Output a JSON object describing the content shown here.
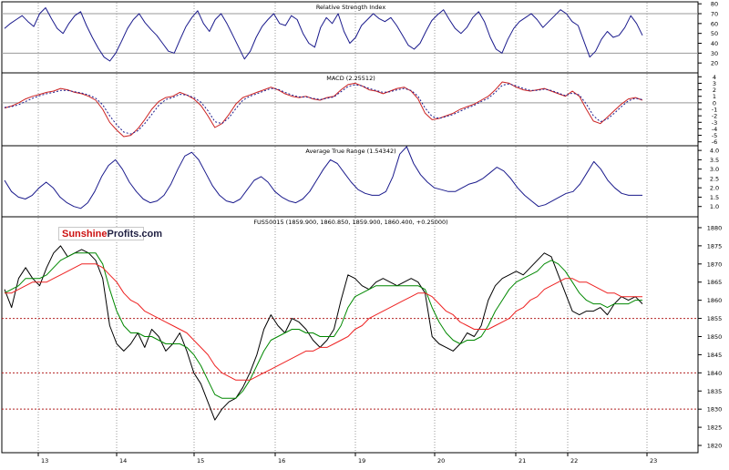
{
  "logo": {
    "part1": "Sunshine",
    "part2": "Profits.com"
  },
  "colors": {
    "price": "#000000",
    "ma_short": "#008800",
    "ma_long": "#ee2222",
    "indicator": "#1a1a8c",
    "macd": "#cc2222",
    "macd_signal": "#1a1a8c",
    "support": "#b22222",
    "grid": "#999999"
  },
  "x_axis": {
    "labels": [
      "13",
      "14",
      "15",
      "16",
      "19",
      "20",
      "21",
      "22",
      "23"
    ]
  },
  "chart_data": [
    {
      "type": "line",
      "title": "Relative Strength Index",
      "ylim": [
        10,
        82
      ],
      "yticks": [
        20,
        30,
        40,
        50,
        60,
        70,
        80
      ],
      "reference_lines": [
        30,
        70
      ],
      "series": [
        {
          "values": [
            55,
            60,
            64,
            68,
            62,
            57,
            70,
            76,
            65,
            55,
            50,
            60,
            68,
            72,
            58,
            46,
            35,
            26,
            22,
            30,
            42,
            55,
            64,
            70,
            61,
            54,
            48,
            40,
            32,
            30,
            44,
            57,
            66,
            73,
            60,
            52,
            64,
            70,
            60,
            48,
            36,
            24,
            32,
            46,
            57,
            64,
            70,
            60,
            58,
            68,
            64,
            50,
            40,
            36,
            56,
            66,
            60,
            70,
            52,
            40,
            46,
            58,
            64,
            70,
            65,
            62,
            66,
            58,
            48,
            38,
            34,
            40,
            52,
            63,
            69,
            74,
            64,
            55,
            50,
            56,
            66,
            72,
            62,
            46,
            34,
            30,
            44,
            55,
            62,
            66,
            70,
            64,
            56,
            62,
            68,
            74,
            70,
            62,
            58,
            42,
            26,
            32,
            44,
            52,
            46,
            48,
            56,
            68,
            60,
            48
          ]
        }
      ]
    },
    {
      "type": "line",
      "title": "MACD (2.25512)",
      "ylim": [
        -6.6,
        4.6
      ],
      "yticks": [
        4,
        3,
        2,
        1,
        0,
        -1,
        -2,
        -3,
        -4,
        -5,
        -6
      ],
      "reference_lines": [
        0
      ],
      "series": [
        {
          "values": [
            -0.8,
            -0.5,
            0,
            0.6,
            1.0,
            1.3,
            1.6,
            1.8,
            2.2,
            2.0,
            1.6,
            1.4,
            1.0,
            0.4,
            -1.0,
            -3.0,
            -4.2,
            -5.2,
            -5.0,
            -4.0,
            -2.6,
            -1.0,
            0.2,
            0.8,
            1.0,
            1.6,
            1.2,
            0.6,
            -0.4,
            -2.0,
            -3.8,
            -3.2,
            -1.8,
            -0.2,
            0.8,
            1.2,
            1.6,
            2.0,
            2.4,
            2.0,
            1.4,
            1.0,
            0.8,
            1.0,
            0.6,
            0.4,
            0.8,
            1.0,
            2.0,
            2.8,
            3.0,
            2.6,
            2.0,
            1.8,
            1.4,
            1.8,
            2.2,
            2.4,
            1.8,
            0.6,
            -1.6,
            -2.6,
            -2.4,
            -2.0,
            -1.6,
            -1.0,
            -0.6,
            -0.2,
            0.4,
            1.0,
            2.0,
            3.2,
            3.0,
            2.4,
            2.0,
            1.8,
            2.0,
            2.2,
            1.8,
            1.4,
            1.0,
            1.8,
            1.0,
            -1.0,
            -2.8,
            -3.2,
            -2.2,
            -1.2,
            -0.2,
            0.6,
            0.8,
            0.4
          ]
        },
        {
          "values": [
            -0.7,
            -0.6,
            -0.3,
            0.2,
            0.7,
            1.1,
            1.4,
            1.6,
            1.9,
            1.9,
            1.7,
            1.5,
            1.2,
            0.7,
            -0.3,
            -2.0,
            -3.4,
            -4.5,
            -4.8,
            -4.3,
            -3.2,
            -1.8,
            -0.4,
            0.5,
            0.8,
            1.3,
            1.2,
            0.8,
            0.1,
            -1.2,
            -2.9,
            -3.2,
            -2.3,
            -0.9,
            0.4,
            1.0,
            1.4,
            1.8,
            2.2,
            2.1,
            1.6,
            1.2,
            0.9,
            0.9,
            0.7,
            0.5,
            0.7,
            0.9,
            1.7,
            2.5,
            2.8,
            2.6,
            2.2,
            1.9,
            1.6,
            1.7,
            2.0,
            2.2,
            1.9,
            1.0,
            -0.8,
            -2.1,
            -2.4,
            -2.1,
            -1.8,
            -1.3,
            -0.8,
            -0.4,
            0.2,
            0.7,
            1.6,
            2.7,
            2.9,
            2.6,
            2.2,
            1.9,
            1.9,
            2.1,
            1.9,
            1.5,
            1.1,
            1.5,
            1.2,
            -0.2,
            -2.0,
            -2.9,
            -2.5,
            -1.6,
            -0.6,
            0.3,
            0.7,
            0.5
          ]
        }
      ]
    },
    {
      "type": "line",
      "title": "Average True Range (1.54342)",
      "ylim": [
        0.45,
        4.25
      ],
      "yticks": [
        4.0,
        3.5,
        3.0,
        2.5,
        2.0,
        1.5,
        1.0
      ],
      "series": [
        {
          "values": [
            2.4,
            1.8,
            1.5,
            1.4,
            1.6,
            2.0,
            2.3,
            2.0,
            1.5,
            1.2,
            1.0,
            0.9,
            1.2,
            1.8,
            2.6,
            3.2,
            3.5,
            3.0,
            2.3,
            1.8,
            1.4,
            1.2,
            1.3,
            1.6,
            2.2,
            3.0,
            3.7,
            3.9,
            3.5,
            2.8,
            2.1,
            1.6,
            1.3,
            1.2,
            1.4,
            1.9,
            2.4,
            2.6,
            2.3,
            1.8,
            1.5,
            1.3,
            1.2,
            1.4,
            1.8,
            2.4,
            3.0,
            3.5,
            3.3,
            2.8,
            2.3,
            1.9,
            1.7,
            1.6,
            1.6,
            1.8,
            2.6,
            3.8,
            4.2,
            3.3,
            2.7,
            2.3,
            2.0,
            1.9,
            1.8,
            1.8,
            2.0,
            2.2,
            2.3,
            2.5,
            2.8,
            3.1,
            2.9,
            2.5,
            2.0,
            1.6,
            1.3,
            1.0,
            1.1,
            1.3,
            1.5,
            1.7,
            1.8,
            2.2,
            2.8,
            3.4,
            3.0,
            2.4,
            2.0,
            1.7,
            1.6,
            1.6,
            1.6
          ]
        }
      ]
    },
    {
      "type": "line",
      "title": "FUS50015 (1859.900, 1860.850, 1859.900, 1860.400, +0.25000)",
      "ylim": [
        1818,
        1883
      ],
      "yticks": [
        1880,
        1875,
        1870,
        1865,
        1860,
        1855,
        1850,
        1845,
        1840,
        1835,
        1830,
        1825,
        1820
      ],
      "support_lines": [
        1855,
        1840,
        1830
      ],
      "series": [
        {
          "values": [
            1863,
            1858,
            1866,
            1869,
            1866,
            1864,
            1869,
            1873,
            1875,
            1872,
            1873,
            1874,
            1873,
            1871,
            1866,
            1853,
            1848,
            1846,
            1848,
            1851,
            1847,
            1852,
            1850,
            1846,
            1848,
            1851,
            1846,
            1840,
            1837,
            1832,
            1827,
            1830,
            1832,
            1833,
            1836,
            1840,
            1845,
            1852,
            1856,
            1853,
            1851,
            1855,
            1854,
            1852,
            1849,
            1847,
            1849,
            1852,
            1860,
            1867,
            1866,
            1864,
            1863,
            1865,
            1866,
            1865,
            1864,
            1865,
            1866,
            1865,
            1862,
            1850,
            1848,
            1847,
            1846,
            1848,
            1851,
            1850,
            1853,
            1860,
            1864,
            1866,
            1867,
            1868,
            1867,
            1869,
            1871,
            1873,
            1872,
            1867,
            1862,
            1857,
            1856,
            1857,
            1857,
            1858,
            1856,
            1859,
            1861,
            1860,
            1861,
            1859
          ]
        },
        {
          "values": [
            1862,
            1863,
            1864,
            1866,
            1866,
            1866,
            1867,
            1869,
            1871,
            1872,
            1873,
            1873,
            1873,
            1873,
            1870,
            1863,
            1857,
            1853,
            1851,
            1851,
            1850,
            1850,
            1849,
            1848,
            1848,
            1848,
            1847,
            1845,
            1842,
            1838,
            1834,
            1833,
            1833,
            1833,
            1835,
            1838,
            1842,
            1846,
            1849,
            1850,
            1851,
            1852,
            1852,
            1851,
            1851,
            1850,
            1850,
            1850,
            1853,
            1858,
            1861,
            1862,
            1863,
            1864,
            1864,
            1864,
            1864,
            1864,
            1864,
            1864,
            1863,
            1858,
            1854,
            1851,
            1849,
            1848,
            1849,
            1849,
            1850,
            1853,
            1857,
            1860,
            1863,
            1865,
            1866,
            1867,
            1868,
            1870,
            1871,
            1870,
            1868,
            1865,
            1862,
            1860,
            1859,
            1859,
            1858,
            1859,
            1859,
            1859,
            1860,
            1860
          ]
        },
        {
          "values": [
            1862,
            1862,
            1863,
            1864,
            1865,
            1865,
            1865,
            1866,
            1867,
            1868,
            1869,
            1870,
            1870,
            1870,
            1869,
            1867,
            1865,
            1862,
            1860,
            1859,
            1857,
            1856,
            1855,
            1854,
            1853,
            1852,
            1851,
            1849,
            1847,
            1845,
            1842,
            1840,
            1839,
            1838,
            1838,
            1838,
            1839,
            1840,
            1841,
            1842,
            1843,
            1844,
            1845,
            1846,
            1846,
            1847,
            1847,
            1848,
            1849,
            1850,
            1852,
            1853,
            1855,
            1856,
            1857,
            1858,
            1859,
            1860,
            1861,
            1862,
            1862,
            1861,
            1859,
            1857,
            1856,
            1854,
            1853,
            1852,
            1852,
            1852,
            1853,
            1854,
            1855,
            1857,
            1858,
            1860,
            1861,
            1863,
            1864,
            1865,
            1866,
            1866,
            1865,
            1865,
            1864,
            1863,
            1862,
            1862,
            1861,
            1861,
            1861,
            1861
          ]
        }
      ]
    }
  ]
}
